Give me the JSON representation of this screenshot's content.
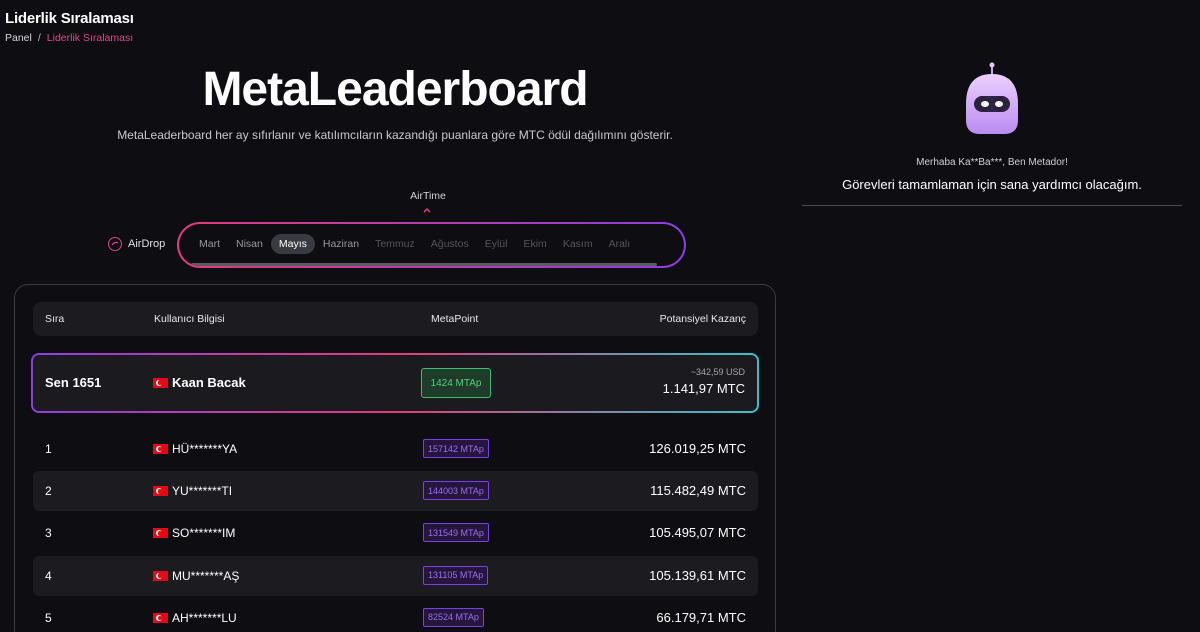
{
  "header": {
    "title": "Liderlik Sıralaması"
  },
  "breadcrumb": {
    "home": "Panel",
    "separator": "/",
    "current": "Liderlik Sıralaması"
  },
  "hero": {
    "title": "MetaLeaderboard",
    "subtitle": "MetaLeaderboard her ay sıfırlanır ve katılımcıların kazandığı puanlara göre MTC ödül dağılımını gösterir."
  },
  "toggle": {
    "airtime": "AirTime",
    "airdrop": "AirDrop"
  },
  "months": [
    "Mart",
    "Nisan",
    "Mayıs",
    "Haziran",
    "Temmuz",
    "Ağustos",
    "Eylül",
    "Ekim",
    "Kasım",
    "Aralı"
  ],
  "selected_month": "Mayıs",
  "table": {
    "headers": {
      "rank": "Sıra",
      "user": "Kullanıcı Bilgisi",
      "point": "MetaPoint",
      "earn": "Potansiyel Kazanç"
    },
    "me": {
      "rank": "Sen 1651",
      "name": "Kaan Bacak",
      "point": "1424 MTAp",
      "usd": "~342,59 USD",
      "mtc": "1.141,97 MTC"
    },
    "rows": [
      {
        "rank": "1",
        "name": "HÜ*******YA",
        "point": "157142 MTAp",
        "earn": "126.019,25 MTC"
      },
      {
        "rank": "2",
        "name": "YU*******TI",
        "point": "144003 MTAp",
        "earn": "115.482,49 MTC"
      },
      {
        "rank": "3",
        "name": "SO*******IM",
        "point": "131549 MTAp",
        "earn": "105.495,07 MTC"
      },
      {
        "rank": "4",
        "name": "MU*******AŞ",
        "point": "131105 MTAp",
        "earn": "105.139,61 MTC"
      },
      {
        "rank": "5",
        "name": "AH*******LU",
        "point": "82524 MTAp",
        "earn": "66.179,71 MTC"
      }
    ]
  },
  "assistant": {
    "greeting": "Merhaba Ka**Ba***, Ben Metador!",
    "message": "Görevleri tamamlaman için sana yardımcı olacağım."
  },
  "colors": {
    "accent_pink": "#e5468f",
    "accent_purple": "#8b3fe0",
    "accent_teal": "#36c3c9",
    "point_green": "#4fd180",
    "point_purple": "#a06cf0"
  }
}
